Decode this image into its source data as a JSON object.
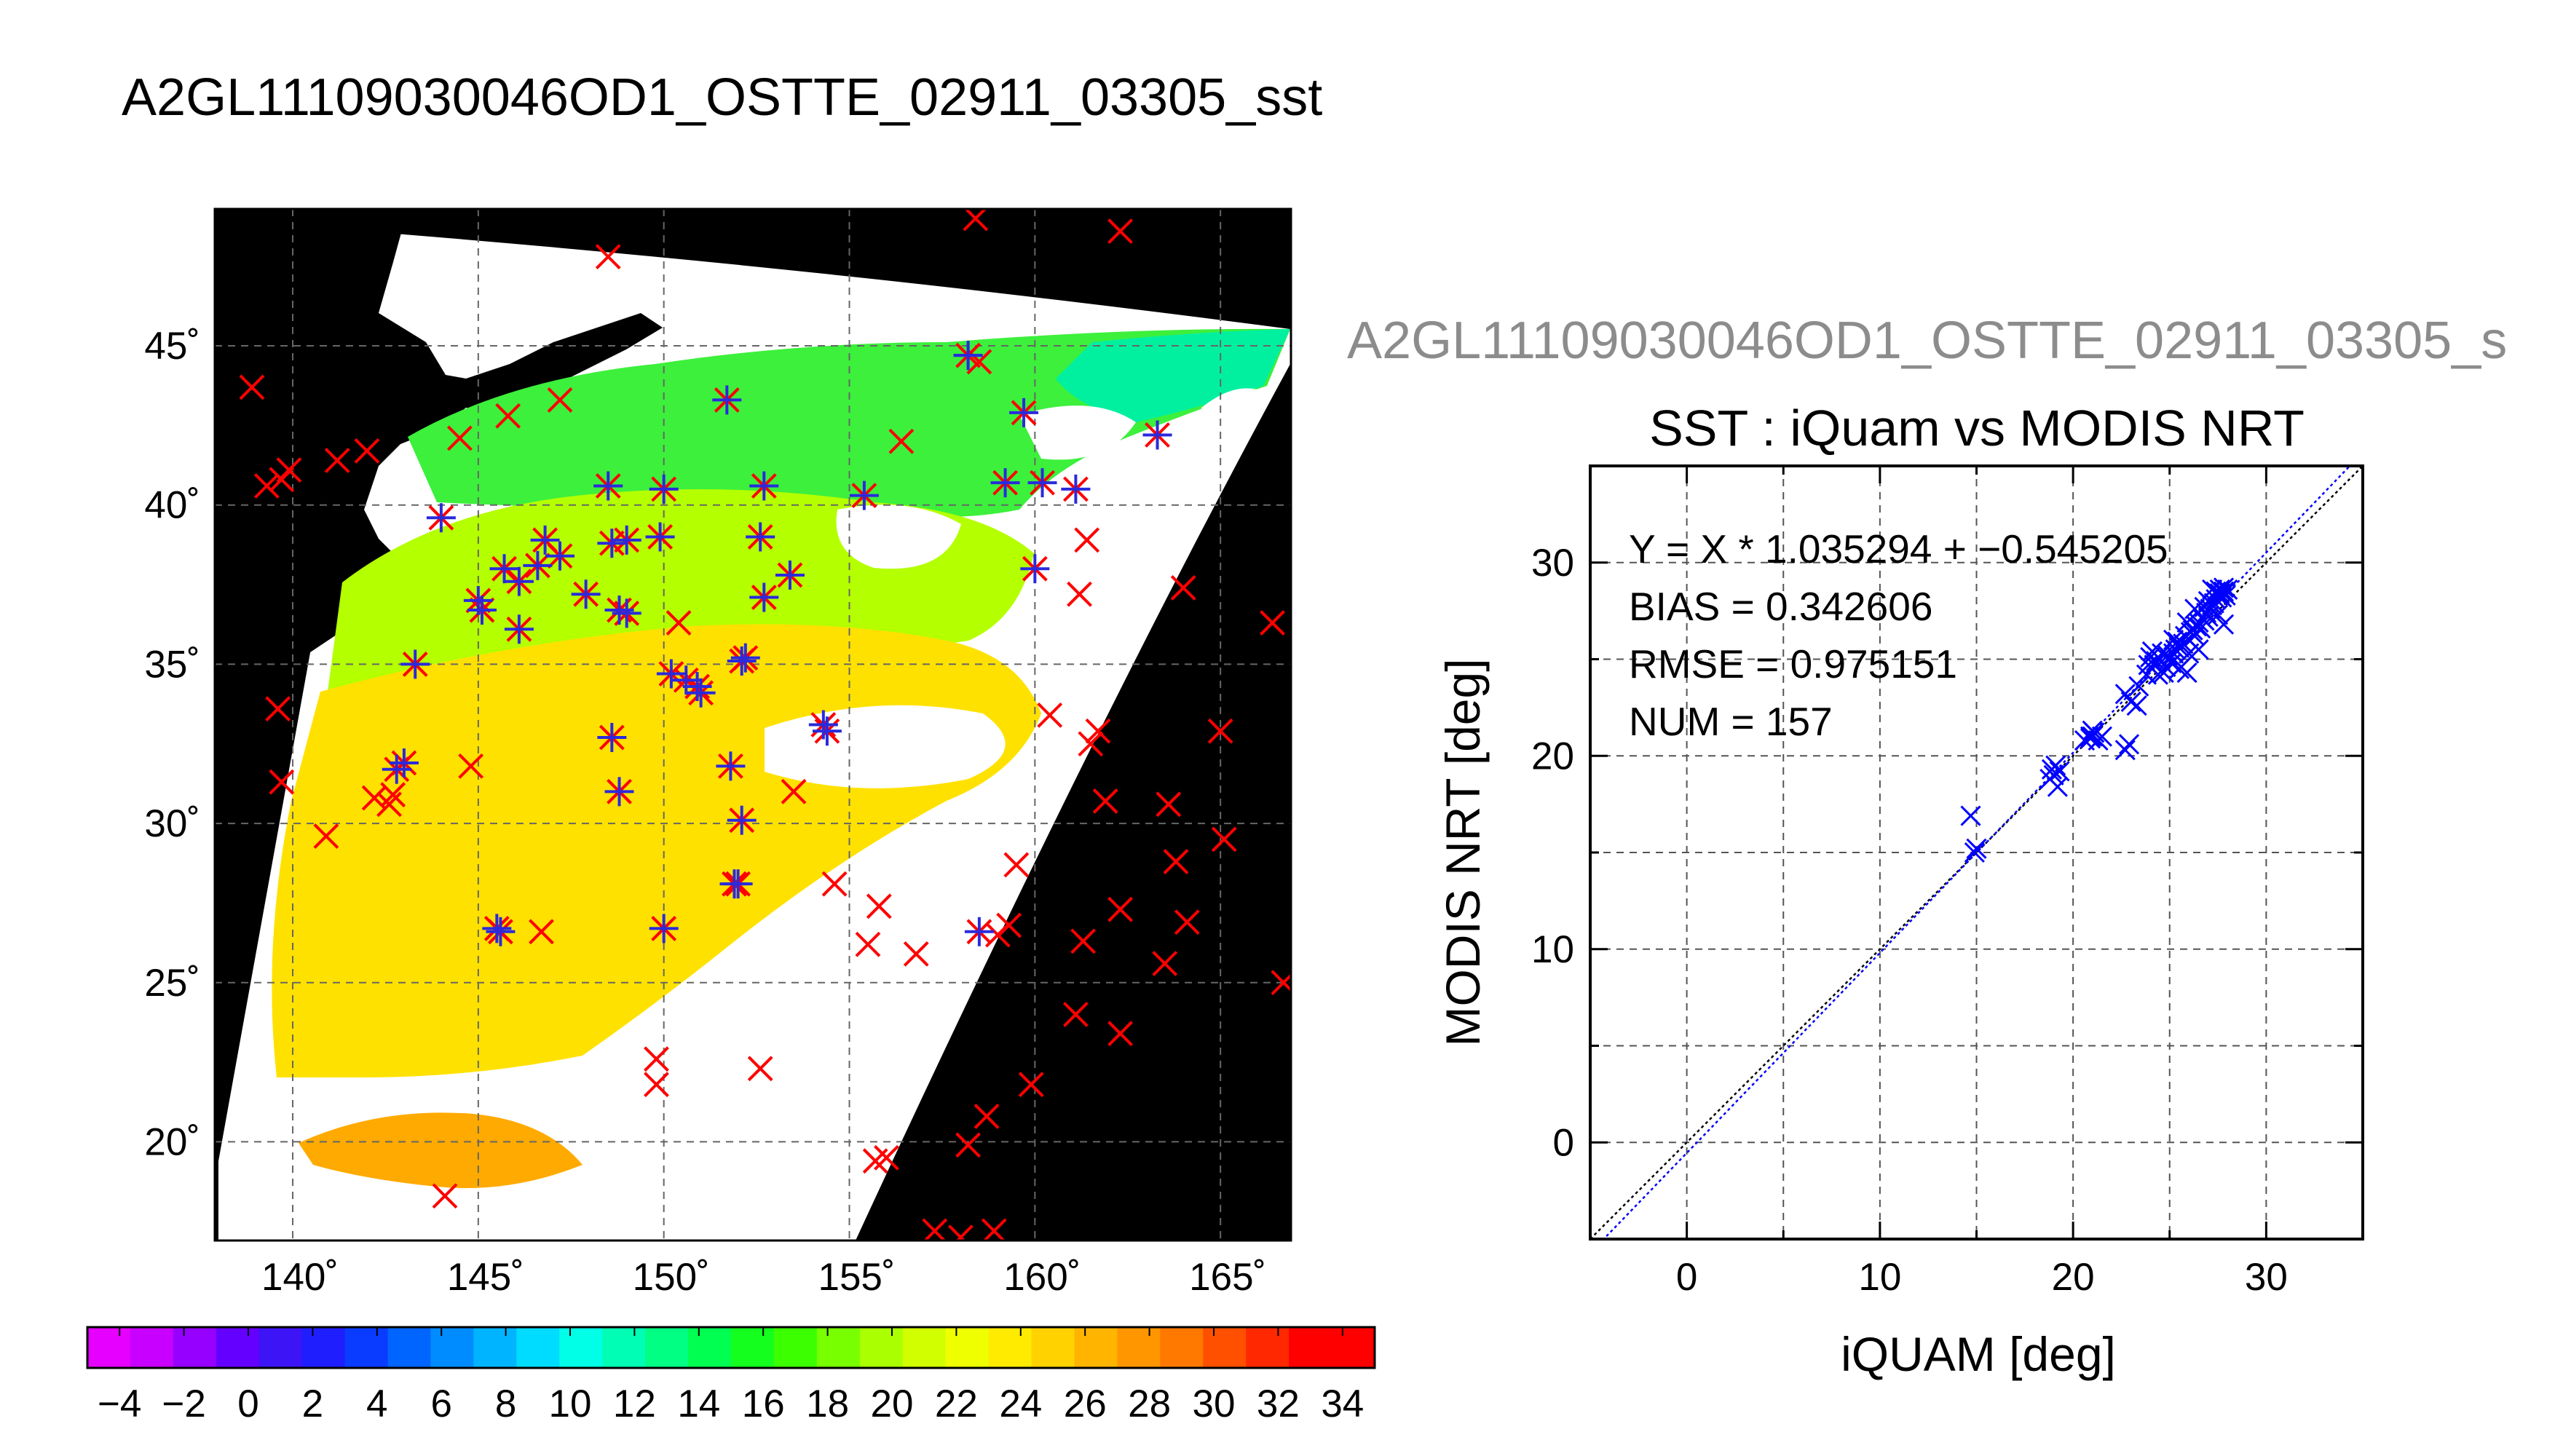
{
  "title": "A2GL11109030046OD1_OSTTE_02911_03305_sst",
  "right_title": "A2GL11109030046OD1_OSTTE_02911_03305_s",
  "map": {
    "lon_ticks": [
      "140˚",
      "145˚",
      "150˚",
      "155˚",
      "160˚",
      "165˚"
    ],
    "lat_ticks": [
      "45˚",
      "40˚",
      "35˚",
      "30˚",
      "25˚",
      "20˚"
    ],
    "lon_values": [
      140,
      145,
      150,
      155,
      160,
      165
    ],
    "lat_values": [
      45,
      40,
      35,
      30,
      25,
      20
    ],
    "lon_range": [
      137.9,
      166.9
    ],
    "lat_range": [
      16.9,
      49.3
    ],
    "colors": {
      "background": "#000000",
      "swath_nodata": "#ffffff",
      "match_marker": "#ff0000",
      "qc_marker": "#2a2adc"
    },
    "matchup_points": [
      [
        158.4,
        49.0
      ],
      [
        162.3,
        48.6
      ],
      [
        148.5,
        47.8
      ],
      [
        138.9,
        43.7
      ],
      [
        147.2,
        43.3
      ],
      [
        151.7,
        43.3
      ],
      [
        158.2,
        44.7
      ],
      [
        158.5,
        44.5
      ],
      [
        144.5,
        42.1
      ],
      [
        145.8,
        42.8
      ],
      [
        142.0,
        41.7
      ],
      [
        139.9,
        41.1
      ],
      [
        139.3,
        40.6
      ],
      [
        139.7,
        40.8
      ],
      [
        141.2,
        41.4
      ],
      [
        159.7,
        42.9
      ],
      [
        156.4,
        42.0
      ],
      [
        144.0,
        39.6
      ],
      [
        148.5,
        40.6
      ],
      [
        150.0,
        40.5
      ],
      [
        152.7,
        40.6
      ],
      [
        155.4,
        40.3
      ],
      [
        159.2,
        40.7
      ],
      [
        160.2,
        40.7
      ],
      [
        161.1,
        40.5
      ],
      [
        163.3,
        42.2
      ],
      [
        161.4,
        38.9
      ],
      [
        146.8,
        38.9
      ],
      [
        148.6,
        38.8
      ],
      [
        149.0,
        38.9
      ],
      [
        149.9,
        39.0
      ],
      [
        152.6,
        39.0
      ],
      [
        145.7,
        38.0
      ],
      [
        146.1,
        37.6
      ],
      [
        146.6,
        38.1
      ],
      [
        147.2,
        38.4
      ],
      [
        147.9,
        37.2
      ],
      [
        148.8,
        36.7
      ],
      [
        149.0,
        36.6
      ],
      [
        145.0,
        37.0
      ],
      [
        145.1,
        36.7
      ],
      [
        146.1,
        36.1
      ],
      [
        150.4,
        36.3
      ],
      [
        152.7,
        37.1
      ],
      [
        153.4,
        37.8
      ],
      [
        160.0,
        38.0
      ],
      [
        161.2,
        37.2
      ],
      [
        164.0,
        37.4
      ],
      [
        166.4,
        36.3
      ],
      [
        143.3,
        35.0
      ],
      [
        150.2,
        34.7
      ],
      [
        150.6,
        34.5
      ],
      [
        150.9,
        34.3
      ],
      [
        151.0,
        34.1
      ],
      [
        152.1,
        35.1
      ],
      [
        152.2,
        35.2
      ],
      [
        139.6,
        33.6
      ],
      [
        154.4,
        32.9
      ],
      [
        154.3,
        33.1
      ],
      [
        148.6,
        32.7
      ],
      [
        148.8,
        31.0
      ],
      [
        143.0,
        31.9
      ],
      [
        142.8,
        31.7
      ],
      [
        144.8,
        31.8
      ],
      [
        151.8,
        31.8
      ],
      [
        153.5,
        31.0
      ],
      [
        160.4,
        33.4
      ],
      [
        161.5,
        32.5
      ],
      [
        161.7,
        32.9
      ],
      [
        165.0,
        32.9
      ],
      [
        139.7,
        31.3
      ],
      [
        142.2,
        30.8
      ],
      [
        142.6,
        30.6
      ],
      [
        142.7,
        30.9
      ],
      [
        152.1,
        30.1
      ],
      [
        161.9,
        30.7
      ],
      [
        163.6,
        30.6
      ],
      [
        140.9,
        29.6
      ],
      [
        159.5,
        28.7
      ],
      [
        163.8,
        28.8
      ],
      [
        165.1,
        29.5
      ],
      [
        151.9,
        28.1
      ],
      [
        152.0,
        28.1
      ],
      [
        154.6,
        28.1
      ],
      [
        155.8,
        27.4
      ],
      [
        162.3,
        27.3
      ],
      [
        164.1,
        26.9
      ],
      [
        145.6,
        26.6
      ],
      [
        145.5,
        26.7
      ],
      [
        146.7,
        26.6
      ],
      [
        150.0,
        26.7
      ],
      [
        155.5,
        26.2
      ],
      [
        156.8,
        25.9
      ],
      [
        159.3,
        26.8
      ],
      [
        159.0,
        26.5
      ],
      [
        161.3,
        26.3
      ],
      [
        163.5,
        25.6
      ],
      [
        166.7,
        25.0
      ],
      [
        158.5,
        26.6
      ],
      [
        161.1,
        24.0
      ],
      [
        162.3,
        23.4
      ],
      [
        149.8,
        22.6
      ],
      [
        149.8,
        21.8
      ],
      [
        152.6,
        22.3
      ],
      [
        159.9,
        21.8
      ],
      [
        158.7,
        20.8
      ],
      [
        158.2,
        19.9
      ],
      [
        155.7,
        19.4
      ],
      [
        156.0,
        19.5
      ],
      [
        144.1,
        18.3
      ],
      [
        157.3,
        17.2
      ],
      [
        158.0,
        17.0
      ],
      [
        158.9,
        17.2
      ]
    ],
    "qc_points": [
      [
        151.7,
        43.3
      ],
      [
        158.2,
        44.7
      ],
      [
        144.0,
        39.6
      ],
      [
        148.5,
        40.6
      ],
      [
        150.0,
        40.5
      ],
      [
        152.7,
        40.6
      ],
      [
        155.4,
        40.3
      ],
      [
        159.2,
        40.7
      ],
      [
        160.2,
        40.7
      ],
      [
        161.1,
        40.5
      ],
      [
        163.3,
        42.2
      ],
      [
        159.7,
        42.9
      ],
      [
        146.8,
        38.9
      ],
      [
        148.6,
        38.8
      ],
      [
        149.0,
        38.9
      ],
      [
        149.9,
        39.0
      ],
      [
        152.6,
        39.0
      ],
      [
        145.7,
        38.0
      ],
      [
        146.1,
        37.6
      ],
      [
        146.6,
        38.1
      ],
      [
        147.2,
        38.4
      ],
      [
        147.9,
        37.2
      ],
      [
        148.8,
        36.7
      ],
      [
        149.0,
        36.6
      ],
      [
        145.0,
        37.0
      ],
      [
        145.1,
        36.7
      ],
      [
        146.1,
        36.1
      ],
      [
        152.7,
        37.1
      ],
      [
        153.4,
        37.8
      ],
      [
        160.0,
        38.0
      ],
      [
        143.3,
        35.0
      ],
      [
        150.2,
        34.7
      ],
      [
        150.6,
        34.5
      ],
      [
        150.9,
        34.3
      ],
      [
        151.0,
        34.1
      ],
      [
        152.1,
        35.1
      ],
      [
        152.2,
        35.2
      ],
      [
        154.4,
        32.9
      ],
      [
        154.3,
        33.1
      ],
      [
        148.6,
        32.7
      ],
      [
        148.8,
        31.0
      ],
      [
        143.0,
        31.9
      ],
      [
        142.8,
        31.7
      ],
      [
        151.8,
        31.8
      ],
      [
        152.1,
        30.1
      ],
      [
        151.9,
        28.1
      ],
      [
        152.0,
        28.1
      ],
      [
        145.6,
        26.6
      ],
      [
        145.5,
        26.7
      ],
      [
        150.0,
        26.7
      ],
      [
        158.5,
        26.6
      ],
      [
        158.2,
        44.7
      ]
    ]
  },
  "colorbar": {
    "tick_labels": [
      "−4",
      "−2",
      "0",
      "2",
      "4",
      "6",
      "8",
      "10",
      "12",
      "14",
      "16",
      "18",
      "20",
      "22",
      "24",
      "26",
      "28",
      "30",
      "32",
      "34"
    ],
    "range": [
      -5,
      35
    ],
    "bins": [
      "#e600ff",
      "#c800ff",
      "#9600ff",
      "#6400ff",
      "#3c14f5",
      "#1e1eff",
      "#0a3cff",
      "#0064ff",
      "#008cff",
      "#00b4ff",
      "#00dcff",
      "#00ffe6",
      "#00ffb4",
      "#00ff82",
      "#00ff50",
      "#14ff1e",
      "#3cff00",
      "#78ff00",
      "#aaff00",
      "#d2ff00",
      "#f0ff00",
      "#ffeb00",
      "#ffd200",
      "#ffb400",
      "#ff9600",
      "#ff7800",
      "#ff5000",
      "#ff2800",
      "#ff0000",
      "#ff0000"
    ]
  },
  "chart_data": {
    "type": "scatter",
    "title": "SST : iQuam vs MODIS NRT",
    "xlabel": "iQUAM [deg]",
    "ylabel": "MODIS NRT [deg]",
    "xlim": [
      -5,
      35
    ],
    "ylim": [
      -5,
      35
    ],
    "x_ticks": [
      0,
      10,
      20,
      30
    ],
    "y_ticks": [
      0,
      10,
      20,
      30
    ],
    "grid": true,
    "annotations": [
      "Y = X * 1.035294 + −0.545205",
      "BIAS = 0.342606",
      "RMSE = 0.975151",
      "NUM = 157"
    ],
    "fit": {
      "slope": 1.035294,
      "intercept": -0.545205
    },
    "marker_color": "#0000ff",
    "points": [
      [
        14.7,
        16.9
      ],
      [
        14.9,
        15.0
      ],
      [
        15.0,
        15.2
      ],
      [
        18.8,
        18.8
      ],
      [
        18.9,
        19.3
      ],
      [
        19.0,
        19.0
      ],
      [
        19.3,
        19.2
      ],
      [
        19.1,
        19.5
      ],
      [
        20.6,
        20.8
      ],
      [
        20.9,
        21.0
      ],
      [
        21.0,
        21.0
      ],
      [
        21.1,
        21.2
      ],
      [
        21.3,
        20.8
      ],
      [
        21.5,
        21.0
      ],
      [
        20.9,
        20.9
      ],
      [
        21.0,
        21.3
      ],
      [
        22.7,
        20.3
      ],
      [
        22.9,
        20.6
      ],
      [
        22.7,
        23.2
      ],
      [
        23.0,
        22.8
      ],
      [
        23.4,
        23.6
      ],
      [
        23.8,
        24.2
      ],
      [
        23.9,
        24.7
      ],
      [
        24.0,
        25.1
      ],
      [
        24.2,
        24.7
      ],
      [
        24.3,
        24.9
      ],
      [
        24.5,
        25.0
      ],
      [
        24.6,
        25.3
      ],
      [
        24.8,
        24.6
      ],
      [
        24.9,
        25.2
      ],
      [
        25.0,
        25.0
      ],
      [
        25.1,
        24.8
      ],
      [
        25.2,
        25.3
      ],
      [
        25.3,
        25.5
      ],
      [
        25.4,
        25.9
      ],
      [
        25.5,
        24.5
      ],
      [
        25.5,
        25.6
      ],
      [
        25.7,
        25.8
      ],
      [
        25.8,
        26.2
      ],
      [
        25.9,
        24.3
      ],
      [
        26.0,
        26.0
      ],
      [
        26.1,
        26.4
      ],
      [
        26.2,
        26.5
      ],
      [
        26.3,
        26.2
      ],
      [
        26.4,
        26.7
      ],
      [
        26.5,
        26.9
      ],
      [
        26.6,
        26.6
      ],
      [
        26.7,
        27.1
      ],
      [
        26.8,
        27.0
      ],
      [
        26.9,
        27.4
      ],
      [
        27.0,
        27.2
      ],
      [
        27.1,
        27.6
      ],
      [
        27.2,
        27.8
      ],
      [
        27.3,
        27.9
      ],
      [
        27.4,
        28.1
      ],
      [
        27.5,
        28.3
      ],
      [
        27.6,
        28.4
      ],
      [
        27.7,
        28.2
      ],
      [
        27.8,
        28.5
      ],
      [
        27.9,
        28.3
      ],
      [
        28.0,
        28.6
      ],
      [
        27.8,
        26.8
      ],
      [
        27.5,
        27.3
      ],
      [
        26.5,
        25.5
      ],
      [
        25.6,
        24.6
      ],
      [
        24.4,
        24.2
      ],
      [
        23.3,
        22.6
      ],
      [
        19.2,
        18.4
      ],
      [
        24.1,
        25.4
      ],
      [
        26.0,
        25.3
      ],
      [
        27.2,
        28.6
      ],
      [
        27.4,
        28.5
      ],
      [
        27.6,
        28.6
      ],
      [
        27.8,
        28.7
      ],
      [
        26.3,
        27.6
      ],
      [
        26.8,
        27.7
      ],
      [
        25.2,
        26.0
      ],
      [
        24.7,
        24.3
      ],
      [
        25.9,
        26.9
      ],
      [
        27.0,
        28.0
      ]
    ]
  }
}
